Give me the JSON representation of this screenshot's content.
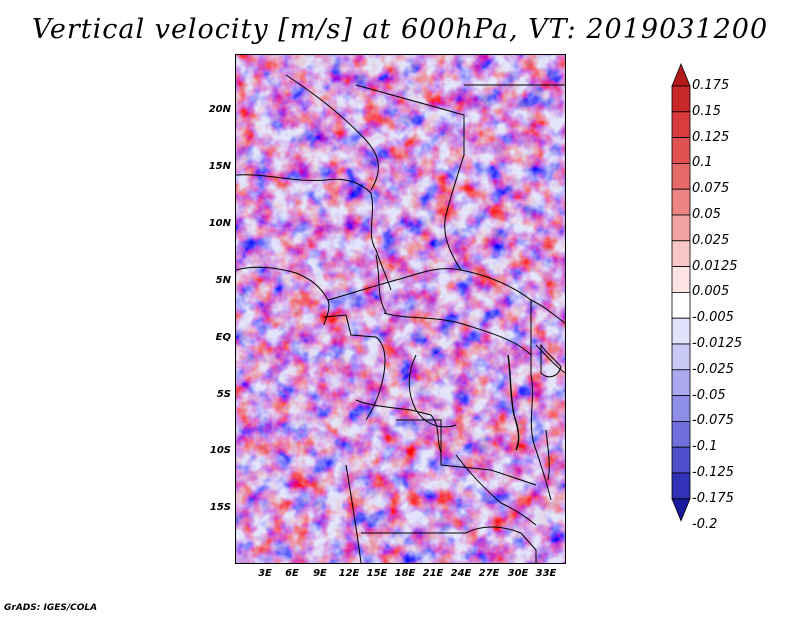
{
  "title": "Vertical velocity [m/s] at 600hPa, VT: 2019031200",
  "credit": "GrADS: IGES/COLA",
  "latitude_labels": [
    "20N",
    "15N",
    "10N",
    "5N",
    "EQ",
    "5S",
    "10S",
    "15S"
  ],
  "longitude_labels": [
    "3E",
    "6E",
    "9E",
    "12E",
    "15E",
    "18E",
    "21E",
    "24E",
    "27E",
    "30E",
    "33E"
  ],
  "colorbar": {
    "labels": [
      "0.175",
      "0.15",
      "0.125",
      "0.1",
      "0.075",
      "0.05",
      "0.025",
      "0.0125",
      "0.005",
      "-0.005",
      "-0.0125",
      "-0.025",
      "-0.05",
      "-0.075",
      "-0.1",
      "-0.125",
      "-0.175",
      "-0.2"
    ],
    "colors": [
      "#b51a1a",
      "#c92828",
      "#d83c3c",
      "#e05252",
      "#e66a6a",
      "#ec8484",
      "#f2a2a2",
      "#f7c6c6",
      "#fce4e4",
      "#ffffff",
      "#e2e2fb",
      "#c8c8f5",
      "#aaaaf0",
      "#8e8ee8",
      "#7070dd",
      "#5050cc",
      "#3232b8",
      "#1a1aa0"
    ]
  },
  "colors": {
    "positive": "#e05252",
    "negative": "#5050cc",
    "borders": "#000000"
  }
}
